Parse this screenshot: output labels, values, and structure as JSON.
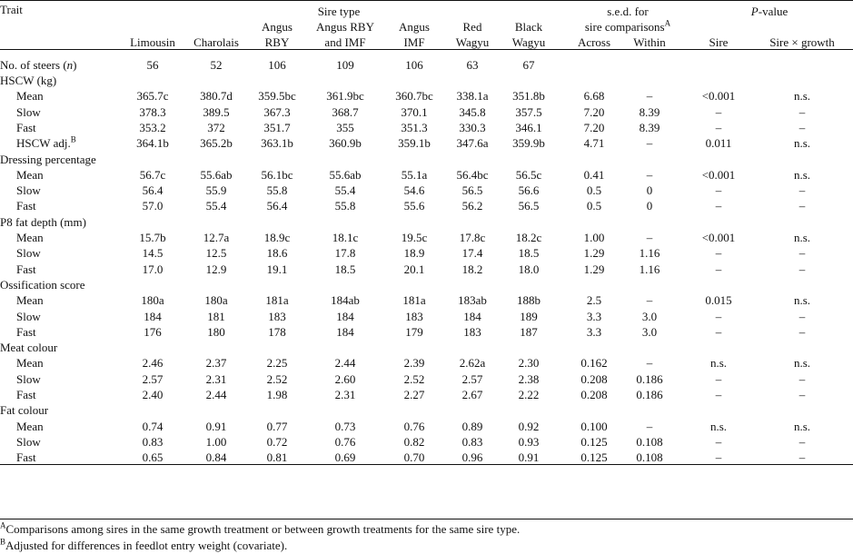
{
  "header": {
    "trait": "Trait",
    "sire_type": "Sire type",
    "sed_line1": "s.e.d. for",
    "sed_line2": "sire comparisons",
    "sed_sup": "A",
    "across": "Across",
    "within": "Within",
    "pvalue_p": "P",
    "pvalue_rest": "-value",
    "sire": "Sire",
    "sire_x_growth": "Sire × growth",
    "cols": [
      {
        "l1": "",
        "l2": "Limousin"
      },
      {
        "l1": "",
        "l2": "Charolais"
      },
      {
        "l1": "Angus",
        "l2": "RBY"
      },
      {
        "l1": "Angus RBY",
        "l2": "and IMF"
      },
      {
        "l1": "Angus",
        "l2": "IMF"
      },
      {
        "l1": "Red",
        "l2": "Wagyu"
      },
      {
        "l1": "Black",
        "l2": "Wagyu"
      }
    ]
  },
  "steers": {
    "label_pre": "No. of steers (",
    "label_n": "n",
    "label_post": ")",
    "values": [
      "56",
      "52",
      "106",
      "109",
      "106",
      "63",
      "67"
    ]
  },
  "sections": [
    {
      "title": "HSCW (kg)",
      "rows": [
        {
          "label": "Mean",
          "vals": [
            "365.7c",
            "380.7d",
            "359.5bc",
            "361.9bc",
            "360.7bc",
            "338.1a",
            "351.8b"
          ],
          "across": "6.68",
          "within": "–",
          "sire": "<0.001",
          "sxg": "n.s."
        },
        {
          "label": "Slow",
          "vals": [
            "378.3",
            "389.5",
            "367.3",
            "368.7",
            "370.1",
            "345.8",
            "357.5"
          ],
          "across": "7.20",
          "within": "8.39",
          "sire": "–",
          "sxg": "–"
        },
        {
          "label": "Fast",
          "vals": [
            "353.2",
            "372",
            "351.7",
            "355",
            "351.3",
            "330.3",
            "346.1"
          ],
          "across": "7.20",
          "within": "8.39",
          "sire": "–",
          "sxg": "–"
        },
        {
          "label": "HSCW adj.",
          "sup": "B",
          "vals": [
            "364.1b",
            "365.2b",
            "363.1b",
            "360.9b",
            "359.1b",
            "347.6a",
            "359.9b"
          ],
          "across": "4.71",
          "within": "–",
          "sire": "0.011",
          "sxg": "n.s."
        }
      ]
    },
    {
      "title": "Dressing percentage",
      "rows": [
        {
          "label": "Mean",
          "vals": [
            "56.7c",
            "55.6ab",
            "56.1bc",
            "55.6ab",
            "55.1a",
            "56.4bc",
            "56.5c"
          ],
          "across": "0.41",
          "within": "–",
          "sire": "<0.001",
          "sxg": "n.s."
        },
        {
          "label": "Slow",
          "vals": [
            "56.4",
            "55.9",
            "55.8",
            "55.4",
            "54.6",
            "56.5",
            "56.6"
          ],
          "across": "0.5",
          "within": "0",
          "sire": "–",
          "sxg": "–"
        },
        {
          "label": "Fast",
          "vals": [
            "57.0",
            "55.4",
            "56.4",
            "55.8",
            "55.6",
            "56.2",
            "56.5"
          ],
          "across": "0.5",
          "within": "0",
          "sire": "–",
          "sxg": "–"
        }
      ]
    },
    {
      "title": "P8 fat depth (mm)",
      "rows": [
        {
          "label": "Mean",
          "vals": [
            "15.7b",
            "12.7a",
            "18.9c",
            "18.1c",
            "19.5c",
            "17.8c",
            "18.2c"
          ],
          "across": "1.00",
          "within": "–",
          "sire": "<0.001",
          "sxg": "n.s."
        },
        {
          "label": "Slow",
          "vals": [
            "14.5",
            "12.5",
            "18.6",
            "17.8",
            "18.9",
            "17.4",
            "18.5"
          ],
          "across": "1.29",
          "within": "1.16",
          "sire": "–",
          "sxg": "–"
        },
        {
          "label": "Fast",
          "vals": [
            "17.0",
            "12.9",
            "19.1",
            "18.5",
            "20.1",
            "18.2",
            "18.0"
          ],
          "across": "1.29",
          "within": "1.16",
          "sire": "–",
          "sxg": "–"
        }
      ]
    },
    {
      "title": "Ossification score",
      "rows": [
        {
          "label": "Mean",
          "vals": [
            "180a",
            "180a",
            "181a",
            "184ab",
            "181a",
            "183ab",
            "188b"
          ],
          "across": "2.5",
          "within": "–",
          "sire": "0.015",
          "sxg": "n.s."
        },
        {
          "label": "Slow",
          "vals": [
            "184",
            "181",
            "183",
            "184",
            "183",
            "184",
            "189"
          ],
          "across": "3.3",
          "within": "3.0",
          "sire": "–",
          "sxg": "–"
        },
        {
          "label": "Fast",
          "vals": [
            "176",
            "180",
            "178",
            "184",
            "179",
            "183",
            "187"
          ],
          "across": "3.3",
          "within": "3.0",
          "sire": "–",
          "sxg": "–"
        }
      ]
    },
    {
      "title": "Meat colour",
      "rows": [
        {
          "label": "Mean",
          "vals": [
            "2.46",
            "2.37",
            "2.25",
            "2.44",
            "2.39",
            "2.62a",
            "2.30"
          ],
          "across": "0.162",
          "within": "–",
          "sire": "n.s.",
          "sxg": "n.s."
        },
        {
          "label": "Slow",
          "vals": [
            "2.57",
            "2.31",
            "2.52",
            "2.60",
            "2.52",
            "2.57",
            "2.38"
          ],
          "across": "0.208",
          "within": "0.186",
          "sire": "–",
          "sxg": "–"
        },
        {
          "label": "Fast",
          "vals": [
            "2.40",
            "2.44",
            "1.98",
            "2.31",
            "2.27",
            "2.67",
            "2.22"
          ],
          "across": "0.208",
          "within": "0.186",
          "sire": "–",
          "sxg": "–"
        }
      ]
    },
    {
      "title": "Fat colour",
      "rows": [
        {
          "label": "Mean",
          "vals": [
            "0.74",
            "0.91",
            "0.77",
            "0.73",
            "0.76",
            "0.89",
            "0.92"
          ],
          "across": "0.100",
          "within": "–",
          "sire": "n.s.",
          "sxg": "n.s."
        },
        {
          "label": "Slow",
          "vals": [
            "0.83",
            "1.00",
            "0.72",
            "0.76",
            "0.82",
            "0.83",
            "0.93"
          ],
          "across": "0.125",
          "within": "0.108",
          "sire": "–",
          "sxg": "–"
        },
        {
          "label": "Fast",
          "vals": [
            "0.65",
            "0.84",
            "0.81",
            "0.69",
            "0.70",
            "0.96",
            "0.91"
          ],
          "across": "0.125",
          "within": "0.108",
          "sire": "–",
          "sxg": "–"
        }
      ]
    }
  ],
  "footnotes": [
    {
      "mark": "A",
      "text": "Comparisons among sires in the same growth treatment or between growth treatments for the same sire type."
    },
    {
      "mark": "B",
      "text": "Adjusted for differences in feedlot entry weight (covariate)."
    }
  ]
}
